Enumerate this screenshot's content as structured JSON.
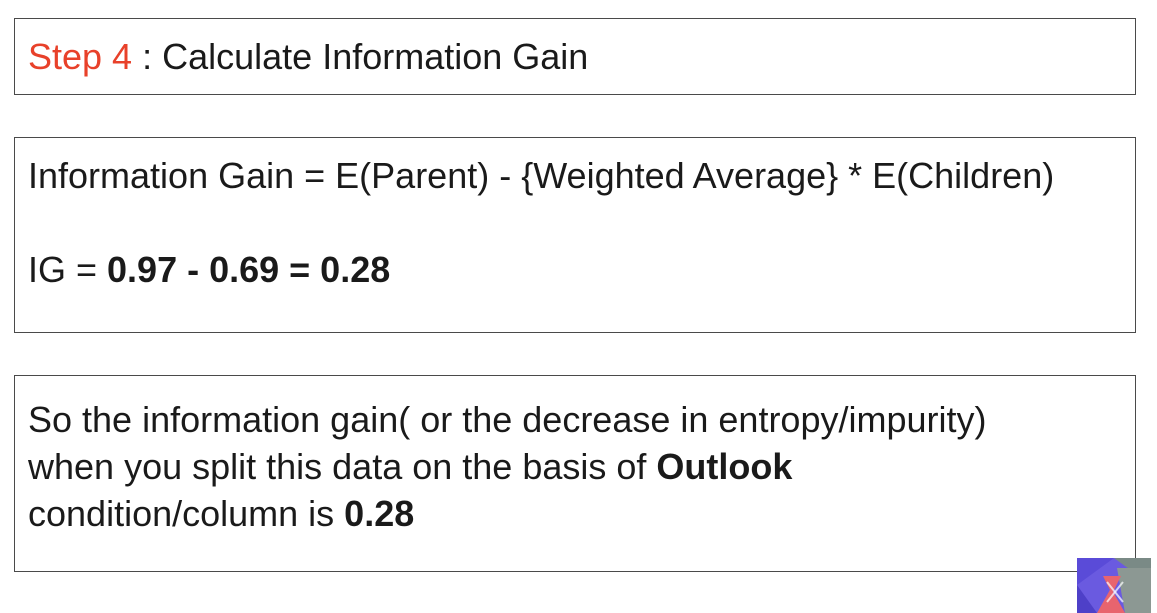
{
  "step_box": {
    "step_label": "Step 4",
    "separator": " : ",
    "title": "Calculate Information Gain"
  },
  "formula_box": {
    "formula": "Information Gain = E(Parent) - {Weighted Average} * E(Children)",
    "ig_prefix": "IG = ",
    "ig_expression": "0.97 - 0.69 = 0.28"
  },
  "conclusion_box": {
    "line1": "So the information gain( or the decrease in entropy/impurity)",
    "line2_text": "when you split this data on the basis of ",
    "line2_bold": "Outlook",
    "line3_text": "condition/column is ",
    "line3_bold": "0.28"
  },
  "colors": {
    "accent": "#e8412a",
    "text": "#1a1a1a",
    "border": "#4a4a4a",
    "logo_blue": "#5a4bd8",
    "logo_pink": "#e8646e",
    "logo_gray": "#7a8a86"
  },
  "icons": {
    "corner_logo": "corner-logo-icon"
  }
}
